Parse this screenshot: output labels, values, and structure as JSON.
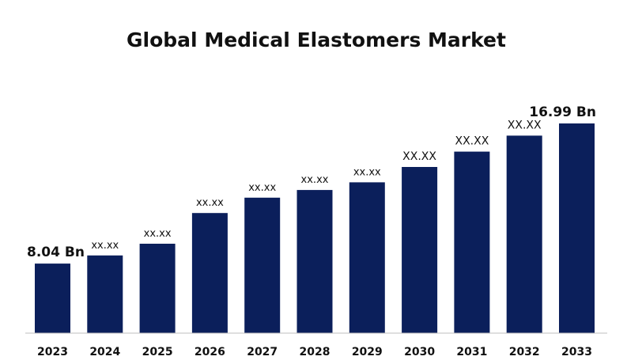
{
  "chart_data": {
    "type": "bar",
    "title": "Global Medical Elastomers Market",
    "xlabel": "",
    "ylabel": "",
    "categories": [
      "2023",
      "2024",
      "2025",
      "2026",
      "2027",
      "2028",
      "2029",
      "2030",
      "2031",
      "2032",
      "2033"
    ],
    "values": [
      8.04,
      8.56,
      9.31,
      11.27,
      12.25,
      12.74,
      13.23,
      14.21,
      15.19,
      16.21,
      16.99
    ],
    "data_labels": [
      "8.04 Bn",
      "xx.xx",
      "xx.xx",
      "xx.xx",
      "xx.xx",
      "xx.xx",
      "xx.xx",
      "XX.XX",
      "XX.XX",
      "XX.XX",
      "16.99 Bn"
    ],
    "ylim": [
      3.6,
      17.9
    ],
    "grid": false,
    "legend": "none",
    "bar_color": "#0b1f5b",
    "axis_color": "#bfbfbf"
  }
}
